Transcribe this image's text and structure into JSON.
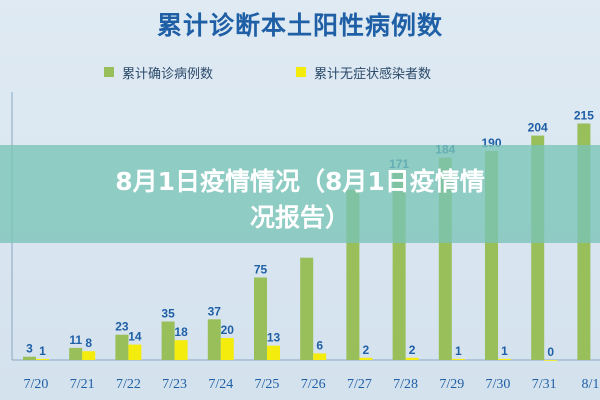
{
  "overlay": {
    "headline_line1": "8月1日疫情情况（8月1日疫情情",
    "headline_line2": "况报告）"
  },
  "colors": {
    "confirmed": "#98bf5a",
    "asymptomatic": "#f4ec0c",
    "label": "#1f5fa6",
    "axis": "#8aa7bf"
  },
  "chart_data": {
    "type": "bar",
    "title": "累计诊断本土阳性病例数",
    "categories": [
      "7/20",
      "7/21",
      "7/22",
      "7/23",
      "7/24",
      "7/25",
      "7/26",
      "7/27",
      "7/28",
      "7/29",
      "7/30",
      "7/31",
      "8/1"
    ],
    "series": [
      {
        "name": "累计确诊病例数",
        "values": [
          3,
          11,
          23,
          35,
          37,
          75,
          93,
          155,
          171,
          184,
          190,
          204,
          215
        ],
        "labels": [
          "3",
          "11",
          "23",
          "35",
          "37",
          "75",
          "",
          "",
          "171",
          "184",
          "190",
          "204",
          "215"
        ]
      },
      {
        "name": "累计无症状感染者数",
        "values": [
          1,
          8,
          14,
          18,
          20,
          13,
          6,
          2,
          2,
          1,
          1,
          0,
          null
        ],
        "labels": [
          "1",
          "8",
          "14",
          "18",
          "20",
          "13",
          "6",
          "2",
          "2",
          "1",
          "1",
          "0",
          ""
        ]
      }
    ],
    "ylim": [
      0,
      230
    ],
    "legend": "top",
    "grid": false
  }
}
